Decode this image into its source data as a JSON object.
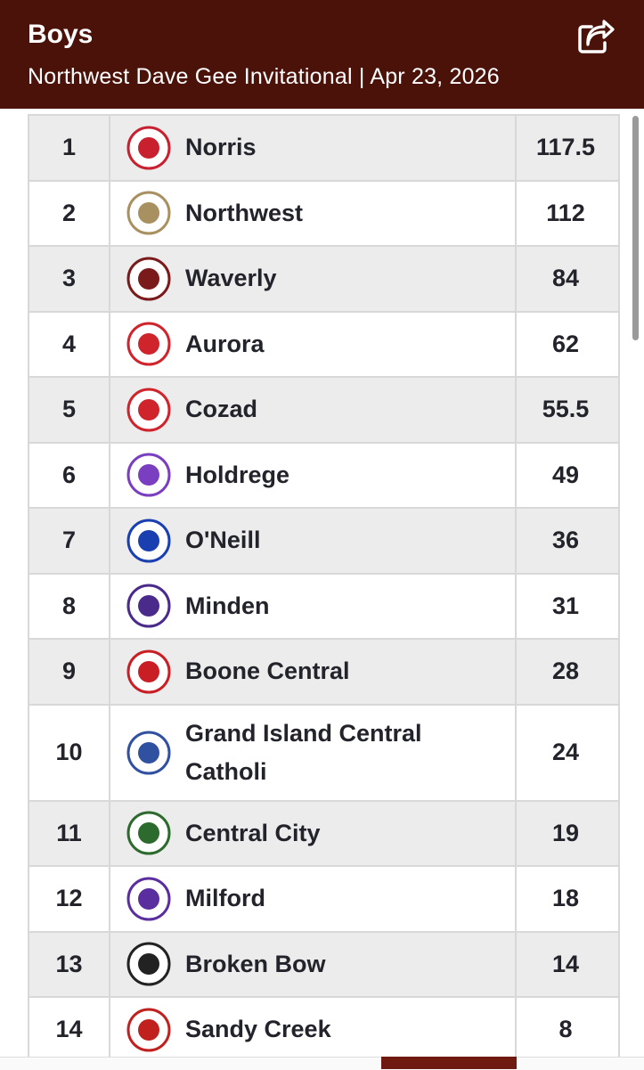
{
  "header": {
    "title": "Boys",
    "subtitle": "Northwest Dave Gee Invitational | Apr 23, 2026"
  },
  "table": {
    "rows": [
      [
        1,
        "Norris",
        117.5
      ],
      [
        2,
        "Northwest",
        112
      ],
      [
        3,
        "Waverly",
        84
      ],
      [
        4,
        "Aurora",
        62
      ],
      [
        5,
        "Cozad",
        55.5
      ],
      [
        6,
        "Holdrege",
        49
      ],
      [
        7,
        "O'Neill",
        36
      ],
      [
        8,
        "Minden",
        31
      ],
      [
        9,
        "Boone Central",
        28
      ],
      [
        10,
        "Grand Island Central Catholi",
        24
      ],
      [
        11,
        "Central City",
        19
      ],
      [
        12,
        "Milford",
        18
      ],
      [
        13,
        "Broken Bow",
        14
      ],
      [
        14,
        "Sandy Creek",
        8
      ]
    ]
  }
}
